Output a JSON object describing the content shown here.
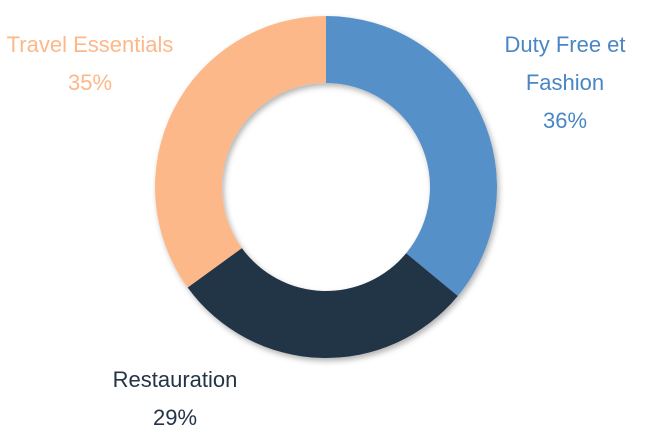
{
  "chart_data": {
    "type": "donut",
    "categories": [
      "Duty Free et Fashion",
      "Restauration",
      "Travel Essentials"
    ],
    "values": [
      36,
      29,
      35
    ],
    "value_labels": [
      "36%",
      "29%",
      "35%"
    ],
    "colors": [
      "#5590c8",
      "#243447",
      "#fdb889"
    ]
  }
}
